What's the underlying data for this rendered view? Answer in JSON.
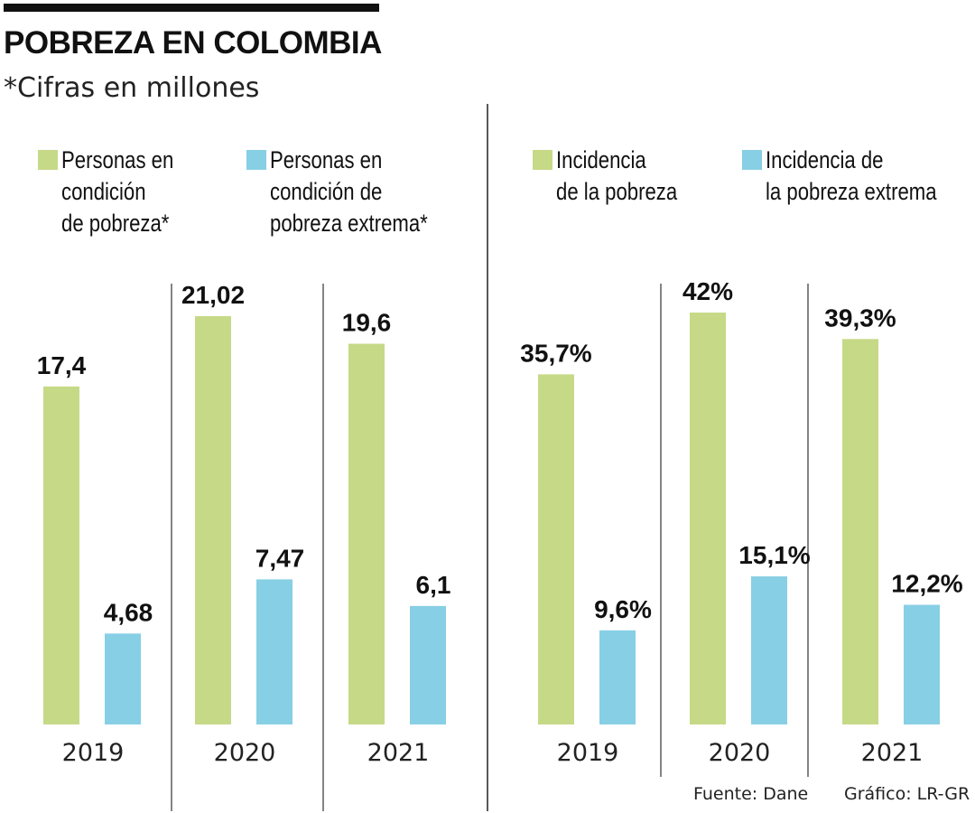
{
  "header": {
    "title": "POBREZA EN COLOMBIA",
    "subtitle": "*Cifras en millones"
  },
  "colors": {
    "green": "#c6d987",
    "blue": "#87cfe5",
    "text": "#111111",
    "divider": "#333333"
  },
  "legends": {
    "left": [
      {
        "label": "Personas en\ncondición\nde pobreza*",
        "color": "#c6d987"
      },
      {
        "label": "Personas en\ncondición de\npobreza extrema*",
        "color": "#87cfe5"
      }
    ],
    "right": [
      {
        "label": "Incidencia\nde la pobreza",
        "color": "#c6d987"
      },
      {
        "label": "Incidencia de\nla pobreza extrema",
        "color": "#87cfe5"
      }
    ]
  },
  "footer": {
    "source": "Fuente: Dane",
    "credit": "Gráfico: LR-GR"
  },
  "chart_data": [
    {
      "type": "bar",
      "title": "Personas en condición de pobreza (millones)",
      "categories": [
        "2019",
        "2020",
        "2021"
      ],
      "series": [
        {
          "name": "Personas en condición de pobreza*",
          "values": [
            17.4,
            21.02,
            19.6
          ],
          "labels": [
            "17,4",
            "21,02",
            "19,6"
          ],
          "color": "#c6d987"
        },
        {
          "name": "Personas en condición de pobreza extrema*",
          "values": [
            4.68,
            7.47,
            6.1
          ],
          "labels": [
            "4,68",
            "7,47",
            "6,1"
          ],
          "color": "#87cfe5"
        }
      ],
      "xlabel": "",
      "ylabel": "",
      "ylim": [
        0,
        21.02
      ],
      "grid": false,
      "legend": "top"
    },
    {
      "type": "bar",
      "title": "Incidencia de la pobreza (%)",
      "categories": [
        "2019",
        "2020",
        "2021"
      ],
      "series": [
        {
          "name": "Incidencia de la pobreza",
          "values": [
            35.7,
            42,
            39.3
          ],
          "labels": [
            "35,7%",
            "42%",
            "39,3%"
          ],
          "color": "#c6d987"
        },
        {
          "name": "Incidencia de la pobreza extrema",
          "values": [
            9.6,
            15.1,
            12.2
          ],
          "labels": [
            "9,6%",
            "15,1%",
            "12,2%"
          ],
          "color": "#87cfe5"
        }
      ],
      "xlabel": "",
      "ylabel": "",
      "ylim": [
        0,
        42
      ],
      "grid": false,
      "legend": "top"
    }
  ]
}
